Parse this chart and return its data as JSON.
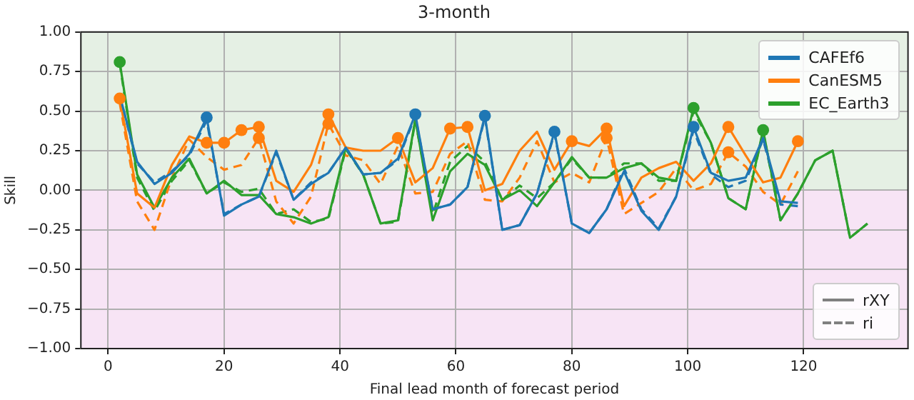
{
  "chart_data": {
    "type": "line",
    "title": "3-month",
    "xlabel": "Final lead month of forecast period",
    "ylabel": "Skill",
    "xlim": [
      -4.7,
      138
    ],
    "xticks": [
      0,
      20,
      40,
      60,
      80,
      100,
      120
    ],
    "ylim": [
      -1,
      1
    ],
    "yticks": [
      {
        "value": -1,
        "label": "−1.00"
      },
      {
        "value": -0.75,
        "label": "−0.75"
      },
      {
        "value": -0.5,
        "label": "−0.50"
      },
      {
        "value": -0.25,
        "label": "−0.25"
      },
      {
        "value": 0,
        "label": "0.00"
      },
      {
        "value": 0.25,
        "label": "0.25"
      },
      {
        "value": 0.5,
        "label": "0.50"
      },
      {
        "value": 0.75,
        "label": "0.75"
      },
      {
        "value": 1,
        "label": "1.00"
      }
    ],
    "grid": true,
    "legend": "top right",
    "marker": "none",
    "bands": [
      {
        "axis": "y",
        "from": 0,
        "to": 1,
        "color": "#e5f0e4"
      },
      {
        "axis": "y",
        "from": -1,
        "to": 0,
        "color": "#f7e4f5"
      }
    ],
    "series": [
      {
        "name": "CAFEf6",
        "line_style": "solid",
        "color": "#1f77b4",
        "x": [
          2,
          5,
          8,
          11,
          14,
          17,
          20,
          23,
          26,
          29,
          32,
          35,
          38,
          41,
          44,
          47,
          50,
          53,
          56,
          59,
          62,
          65,
          68,
          71,
          74,
          77,
          80,
          83,
          86,
          89,
          92,
          95,
          98,
          101,
          104,
          107,
          110,
          113,
          116,
          119
        ],
        "values": [
          0.6,
          0.18,
          0.04,
          0.11,
          0.23,
          0.46,
          -0.16,
          -0.09,
          -0.04,
          0.25,
          -0.06,
          0.04,
          0.11,
          0.27,
          0.1,
          0.11,
          0.2,
          0.48,
          -0.12,
          -0.09,
          0.02,
          0.47,
          -0.25,
          -0.22,
          -0.02,
          0.37,
          -0.21,
          -0.27,
          -0.12,
          0.12,
          -0.13,
          -0.25,
          -0.04,
          0.4,
          0.11,
          0.06,
          0.08,
          0.33,
          -0.07,
          -0.08
        ]
      },
      {
        "name": "CanESM5",
        "line_style": "solid",
        "color": "#ff7f0e",
        "x": [
          2,
          5,
          8,
          11,
          14,
          17,
          20,
          23,
          26,
          29,
          32,
          35,
          38,
          41,
          44,
          47,
          50,
          53,
          56,
          59,
          62,
          65,
          68,
          71,
          74,
          77,
          80,
          83,
          86,
          89,
          92,
          95,
          98,
          101,
          104,
          107,
          110,
          113,
          116,
          119
        ],
        "values": [
          0.58,
          -0.02,
          -0.11,
          0.16,
          0.34,
          0.3,
          0.3,
          0.38,
          0.4,
          0.06,
          -0.01,
          0.16,
          0.48,
          0.27,
          0.25,
          0.25,
          0.33,
          0.05,
          0.14,
          0.39,
          0.4,
          0.0,
          0.04,
          0.25,
          0.37,
          0.13,
          0.31,
          0.28,
          0.39,
          -0.1,
          0.08,
          0.14,
          0.18,
          0.06,
          0.17,
          0.4,
          0.22,
          0.05,
          0.08,
          0.31
        ]
      },
      {
        "name": "EC_Earth3",
        "line_style": "solid",
        "color": "#2ca02c",
        "x": [
          2,
          5,
          8,
          11,
          14,
          17,
          20,
          23,
          26,
          29,
          32,
          35,
          38,
          41,
          44,
          47,
          50,
          53,
          56,
          59,
          62,
          65,
          68,
          71,
          74,
          77,
          80,
          83,
          86,
          89,
          92,
          95,
          98,
          101,
          104,
          107,
          110,
          113,
          116,
          119,
          122,
          125,
          128,
          131
        ],
        "values": [
          0.81,
          0.1,
          -0.11,
          0.08,
          0.2,
          -0.02,
          0.06,
          -0.03,
          -0.03,
          -0.15,
          -0.17,
          -0.21,
          -0.17,
          0.27,
          0.1,
          -0.21,
          -0.19,
          0.45,
          -0.19,
          0.12,
          0.23,
          0.16,
          -0.06,
          0.0,
          -0.1,
          0.05,
          0.21,
          0.08,
          0.08,
          0.14,
          0.17,
          0.08,
          0.06,
          0.52,
          0.3,
          -0.05,
          -0.12,
          0.38,
          -0.19,
          -0.02,
          0.19,
          0.25,
          -0.3,
          -0.21
        ]
      },
      {
        "line_style": "dashed",
        "color": "#1f77b4",
        "x": [
          2,
          5,
          8,
          11,
          14,
          17,
          20,
          23,
          26,
          29,
          32,
          35,
          38,
          41,
          44,
          47,
          50,
          53,
          56,
          59,
          62,
          65,
          68,
          71,
          74,
          77,
          80,
          83,
          86,
          89,
          92,
          95,
          98,
          101,
          104,
          107,
          110,
          113,
          116,
          119
        ],
        "values": [
          0.6,
          0.17,
          0.05,
          0.12,
          0.22,
          0.44,
          -0.15,
          -0.09,
          -0.04,
          0.24,
          -0.06,
          0.05,
          0.11,
          0.27,
          0.1,
          0.11,
          0.19,
          0.47,
          -0.12,
          -0.09,
          0.02,
          0.46,
          -0.25,
          -0.22,
          -0.02,
          0.36,
          -0.21,
          -0.27,
          -0.12,
          0.14,
          -0.12,
          -0.24,
          -0.04,
          0.38,
          0.1,
          0.02,
          0.06,
          0.32,
          -0.09,
          -0.1
        ]
      },
      {
        "line_style": "dashed",
        "color": "#ff7f0e",
        "x": [
          2,
          5,
          8,
          11,
          14,
          17,
          20,
          23,
          26,
          29,
          32,
          35,
          38,
          41,
          44,
          47,
          50,
          53,
          56,
          59,
          62,
          65,
          68,
          71,
          74,
          77,
          80,
          83,
          86,
          89,
          92,
          95,
          98,
          101,
          104,
          107,
          110,
          113,
          116,
          119
        ],
        "values": [
          0.55,
          -0.07,
          -0.25,
          0.08,
          0.32,
          0.21,
          0.13,
          0.16,
          0.33,
          -0.07,
          -0.21,
          -0.04,
          0.42,
          0.22,
          0.19,
          0.04,
          0.28,
          -0.02,
          -0.01,
          0.23,
          0.31,
          -0.06,
          -0.07,
          0.08,
          0.31,
          0.05,
          0.11,
          0.05,
          0.33,
          -0.15,
          -0.08,
          -0.01,
          0.14,
          0.0,
          0.04,
          0.24,
          0.15,
          -0.01,
          -0.09,
          0.12
        ]
      },
      {
        "line_style": "dashed",
        "color": "#2ca02c",
        "x": [
          2,
          5,
          8,
          11,
          14,
          17,
          20,
          23,
          26,
          29,
          32,
          35,
          38,
          41,
          44,
          47,
          50,
          53,
          56,
          59,
          62,
          65,
          68,
          71,
          74,
          77,
          80,
          83,
          86,
          89,
          92,
          95,
          98,
          101,
          104,
          107,
          110,
          113,
          116,
          119,
          122,
          125,
          128,
          131
        ],
        "values": [
          0.8,
          0.08,
          -0.13,
          0.06,
          0.19,
          -0.02,
          0.05,
          -0.01,
          0.01,
          -0.15,
          -0.12,
          -0.2,
          -0.18,
          0.26,
          0.1,
          -0.21,
          -0.2,
          0.44,
          -0.15,
          0.18,
          0.28,
          0.18,
          -0.06,
          0.03,
          -0.05,
          0.05,
          0.2,
          0.08,
          0.08,
          0.17,
          0.17,
          0.06,
          0.06,
          0.5,
          0.3,
          -0.05,
          -0.12,
          0.37,
          -0.19,
          -0.02,
          0.19,
          0.25,
          -0.3,
          -0.21
        ]
      },
      {
        "type": "scatter",
        "marker": "circle",
        "color": "#1f77b4",
        "x": [
          17,
          53,
          65,
          77,
          101
        ],
        "values": [
          0.46,
          0.48,
          0.47,
          0.37,
          0.4
        ]
      },
      {
        "type": "scatter",
        "marker": "circle",
        "color": "#ff7f0e",
        "x": [
          2,
          17,
          20,
          23,
          26,
          26,
          38,
          38,
          50,
          59,
          62,
          80,
          86,
          86,
          107,
          107,
          119
        ],
        "values": [
          0.58,
          0.3,
          0.3,
          0.38,
          0.4,
          0.33,
          0.48,
          0.42,
          0.33,
          0.39,
          0.4,
          0.31,
          0.39,
          0.33,
          0.4,
          0.24,
          0.31
        ]
      },
      {
        "type": "scatter",
        "marker": "circle",
        "color": "#2ca02c",
        "x": [
          2,
          101,
          113
        ],
        "values": [
          0.81,
          0.52,
          0.38
        ]
      },
      {
        "name": "rXY",
        "line_style": "solid",
        "color": "#808080"
      },
      {
        "name": "ri",
        "line_style": "dashed",
        "color": "#808080"
      }
    ]
  }
}
